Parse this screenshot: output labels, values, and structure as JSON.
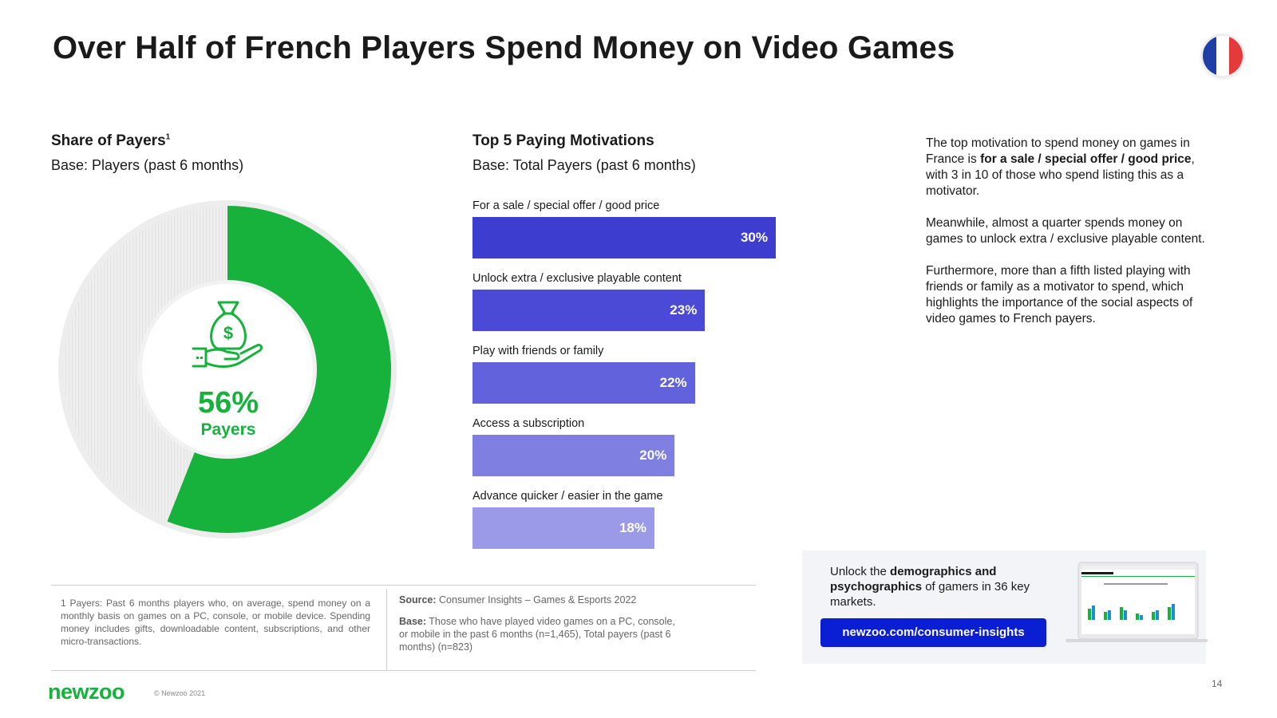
{
  "title": "Over Half of French Players Spend Money on Video Games",
  "flag": {
    "country": "France",
    "colors": [
      "#1f3fa6",
      "#ffffff",
      "#e33a3a"
    ]
  },
  "left_section": {
    "title": "Share of Payers",
    "title_sup": "1",
    "subtitle": "Base: Players (past 6 months)",
    "donut_value": "56%",
    "donut_label": "Payers",
    "icon": "money-bag-hand-icon"
  },
  "bar_section": {
    "title": "Top 5 Paying Motivations",
    "subtitle": "Base: Total Payers (past 6 months)"
  },
  "chart_data": [
    {
      "type": "pie",
      "title": "Share of Payers",
      "subtitle": "Base: Players (past 6 months)",
      "categories": [
        "Payers"
      ],
      "values": [
        56
      ],
      "labels": [
        "56%"
      ],
      "colors": [
        "#16b23c",
        "#e8e8e8"
      ]
    },
    {
      "type": "bar",
      "orientation": "horizontal",
      "title": "Top 5 Paying Motivations",
      "subtitle": "Base: Total Payers (past 6 months)",
      "categories": [
        "For a sale / special offer / good price",
        "Unlock extra / exclusive playable content",
        "Play with friends or family",
        "Access a subscription",
        "Advance quicker / easier in the game"
      ],
      "values": [
        30,
        23,
        22,
        20,
        18
      ],
      "labels": [
        "30%",
        "23%",
        "22%",
        "20%",
        "18%"
      ],
      "colors": [
        "#3d3dd0",
        "#4a4ad6",
        "#6262dc",
        "#7f7fe2",
        "#9a9ae8"
      ],
      "xlim": [
        0,
        30
      ]
    }
  ],
  "commentary": {
    "p1_a": "The top motivation to spend money on games in France is ",
    "p1_bold": "for a sale / special offer / good price",
    "p1_b": ", with 3 in 10 of those who spend listing this as a motivator.",
    "p2": "Meanwhile, almost a quarter spends money on games to unlock extra / exclusive playable content.",
    "p3": "Furthermore, more than a fifth listed playing with friends or family as a motivator to spend, which highlights the importance of the social aspects of video games to French payers."
  },
  "footnote": "1 Payers: Past 6 months players who, on average, spend money on a monthly basis on games on a PC, console, or mobile device. Spending money includes gifts, downloadable content, subscriptions, and other micro-transactions.",
  "source": {
    "source_label": "Source:",
    "source_text": " Consumer Insights – Games & Esports 2022",
    "base_label": "Base:",
    "base_text": " Those who have played video games on a PC, console, or mobile in the past 6 months (n=1,465), Total payers (past 6 months) (n=823)"
  },
  "promo": {
    "text_a": "Unlock the ",
    "text_bold": "demographics and psychographics",
    "text_b": " of gamers in 36 key markets.",
    "button": "newzoo.com/consumer-insights"
  },
  "footer": {
    "logo": "newzoo",
    "copyright": "© Newzoo 2021",
    "page": "14"
  }
}
